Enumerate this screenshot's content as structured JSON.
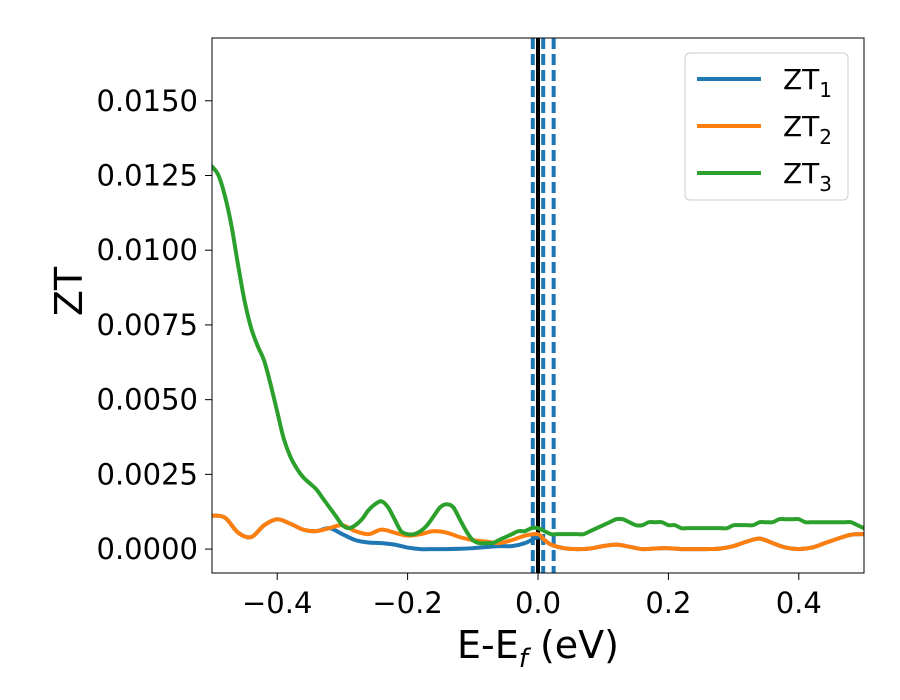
{
  "chart_data": {
    "type": "line",
    "xlabel": {
      "base": "E-E",
      "sub": "f",
      "rest": " (eV)"
    },
    "ylabel": "ZT",
    "xlim": [
      -0.5,
      0.5
    ],
    "ylim": [
      -0.0008,
      0.0171
    ],
    "xticks": [
      -0.4,
      -0.2,
      0.0,
      0.2,
      0.4
    ],
    "xtick_labels": [
      "−0.4",
      "−0.2",
      "0.0",
      "0.2",
      "0.4"
    ],
    "yticks": [
      0.0,
      0.0025,
      0.005,
      0.0075,
      0.01,
      0.0125,
      0.015
    ],
    "ytick_labels": [
      "0.0000",
      "0.0025",
      "0.0050",
      "0.0075",
      "0.0100",
      "0.0125",
      "0.0150"
    ],
    "grid": false,
    "legend_position": "top-right",
    "colors": {
      "zt1": "#1f77b4",
      "zt2": "#ff7f0e",
      "zt3": "#2ca02c",
      "fermi": "#000000"
    },
    "vlines": [
      {
        "x": 0.0,
        "style": "solid",
        "color": "#000000"
      },
      {
        "x": -0.008,
        "style": "dashed",
        "color": "#1f77b4"
      },
      {
        "x": 0.008,
        "style": "dashed",
        "color": "#1f77b4"
      },
      {
        "x": 0.024,
        "style": "dashed",
        "color": "#1f77b4"
      }
    ],
    "series": [
      {
        "name": "ZT",
        "sub": "1",
        "color": "#1f77b4",
        "x": [
          -0.5,
          -0.48,
          -0.46,
          -0.44,
          -0.42,
          -0.4,
          -0.38,
          -0.36,
          -0.34,
          -0.32,
          -0.3,
          -0.28,
          -0.26,
          -0.24,
          -0.22,
          -0.2,
          -0.18,
          -0.16,
          -0.14,
          -0.12,
          -0.1,
          -0.08,
          -0.06,
          -0.04,
          -0.02,
          0.0,
          0.01,
          0.02,
          0.04,
          0.06,
          0.08,
          0.1,
          0.12,
          0.14,
          0.16,
          0.18,
          0.2,
          0.22,
          0.24,
          0.26,
          0.28,
          0.3,
          0.32,
          0.34,
          0.36,
          0.38,
          0.4,
          0.42,
          0.44,
          0.46,
          0.48,
          0.5
        ],
        "y": [
          0.00112,
          0.00105,
          0.00055,
          0.0004,
          0.0008,
          0.001,
          0.00085,
          0.00065,
          0.0006,
          0.0007,
          0.0005,
          0.0003,
          0.00022,
          0.0002,
          0.00015,
          5e-05,
          0.0,
          0.0,
          0.0,
          1e-05,
          3e-05,
          7e-05,
          0.0001,
          0.0001,
          0.0002,
          0.0004,
          0.0003,
          0.00015,
          3e-05,
          0.0,
          2e-05,
          0.0001,
          0.00015,
          8e-05,
          0.0,
          2e-05,
          3e-05,
          0.0,
          0.0,
          0.0,
          2e-05,
          0.0001,
          0.00025,
          0.00035,
          0.0002,
          5e-05,
          0.0,
          5e-05,
          0.0002,
          0.00035,
          0.00048,
          0.0005
        ]
      },
      {
        "name": "ZT",
        "sub": "2",
        "color": "#ff7f0e",
        "x": [
          -0.5,
          -0.48,
          -0.46,
          -0.44,
          -0.42,
          -0.4,
          -0.38,
          -0.36,
          -0.34,
          -0.32,
          -0.3,
          -0.28,
          -0.26,
          -0.24,
          -0.22,
          -0.2,
          -0.18,
          -0.16,
          -0.14,
          -0.12,
          -0.1,
          -0.08,
          -0.06,
          -0.04,
          -0.02,
          0.0,
          0.01,
          0.02,
          0.04,
          0.06,
          0.08,
          0.1,
          0.12,
          0.14,
          0.16,
          0.18,
          0.2,
          0.22,
          0.24,
          0.26,
          0.28,
          0.3,
          0.32,
          0.34,
          0.36,
          0.38,
          0.4,
          0.42,
          0.44,
          0.46,
          0.48,
          0.5
        ],
        "y": [
          0.00112,
          0.00105,
          0.00055,
          0.0004,
          0.0008,
          0.001,
          0.00085,
          0.00065,
          0.0006,
          0.0007,
          0.0008,
          0.0006,
          0.0005,
          0.00065,
          0.00055,
          0.00045,
          0.0005,
          0.0006,
          0.00055,
          0.0004,
          0.0003,
          0.00025,
          0.0002,
          0.0003,
          0.00045,
          0.0005,
          0.0003,
          0.00015,
          3e-05,
          0.0,
          2e-05,
          0.0001,
          0.00015,
          8e-05,
          0.0,
          2e-05,
          3e-05,
          0.0,
          0.0,
          0.0,
          2e-05,
          0.0001,
          0.00025,
          0.00035,
          0.0002,
          5e-05,
          0.0,
          5e-05,
          0.0002,
          0.00035,
          0.00048,
          0.0005
        ]
      },
      {
        "name": "ZT",
        "sub": "3",
        "color": "#2ca02c",
        "x": [
          -0.5,
          -0.49,
          -0.48,
          -0.47,
          -0.46,
          -0.45,
          -0.44,
          -0.43,
          -0.42,
          -0.41,
          -0.4,
          -0.39,
          -0.38,
          -0.37,
          -0.36,
          -0.35,
          -0.34,
          -0.33,
          -0.32,
          -0.31,
          -0.3,
          -0.29,
          -0.28,
          -0.27,
          -0.26,
          -0.25,
          -0.24,
          -0.23,
          -0.22,
          -0.21,
          -0.2,
          -0.19,
          -0.18,
          -0.17,
          -0.16,
          -0.15,
          -0.14,
          -0.13,
          -0.12,
          -0.11,
          -0.1,
          -0.09,
          -0.08,
          -0.07,
          -0.06,
          -0.05,
          -0.04,
          -0.03,
          -0.02,
          -0.01,
          0.0,
          0.01,
          0.02,
          0.03,
          0.04,
          0.05,
          0.06,
          0.07,
          0.08,
          0.09,
          0.1,
          0.11,
          0.12,
          0.13,
          0.14,
          0.15,
          0.16,
          0.17,
          0.18,
          0.19,
          0.2,
          0.21,
          0.22,
          0.23,
          0.24,
          0.25,
          0.26,
          0.27,
          0.28,
          0.29,
          0.3,
          0.31,
          0.32,
          0.33,
          0.34,
          0.35,
          0.36,
          0.37,
          0.38,
          0.39,
          0.4,
          0.41,
          0.42,
          0.43,
          0.44,
          0.45,
          0.46,
          0.47,
          0.48,
          0.49,
          0.5
        ],
        "y": [
          0.0128,
          0.0125,
          0.0118,
          0.0108,
          0.0095,
          0.0083,
          0.0074,
          0.0068,
          0.0063,
          0.0055,
          0.0046,
          0.0037,
          0.0031,
          0.0027,
          0.0024,
          0.0022,
          0.002,
          0.0017,
          0.0014,
          0.0011,
          0.0008,
          0.0007,
          0.0008,
          0.001,
          0.0013,
          0.0015,
          0.0016,
          0.0014,
          0.001,
          0.0006,
          0.0005,
          0.0005,
          0.0006,
          0.0008,
          0.0011,
          0.0014,
          0.0015,
          0.0014,
          0.001,
          0.0006,
          0.0003,
          0.0002,
          0.0002,
          0.0002,
          0.0003,
          0.0004,
          0.0005,
          0.0006,
          0.0006,
          0.0007,
          0.0007,
          0.0006,
          0.0005,
          0.0005,
          0.0005,
          0.0005,
          0.0005,
          0.0005,
          0.0006,
          0.0007,
          0.0008,
          0.0009,
          0.001,
          0.001,
          0.0009,
          0.0008,
          0.0008,
          0.0009,
          0.0009,
          0.0009,
          0.0008,
          0.0008,
          0.0007,
          0.0007,
          0.0007,
          0.0007,
          0.0007,
          0.0007,
          0.0007,
          0.0007,
          0.0008,
          0.0008,
          0.0008,
          0.0008,
          0.0009,
          0.0009,
          0.0009,
          0.001,
          0.001,
          0.001,
          0.001,
          0.0009,
          0.0009,
          0.0009,
          0.0009,
          0.0009,
          0.0009,
          0.0009,
          0.0009,
          0.0008,
          0.0007
        ]
      }
    ]
  }
}
